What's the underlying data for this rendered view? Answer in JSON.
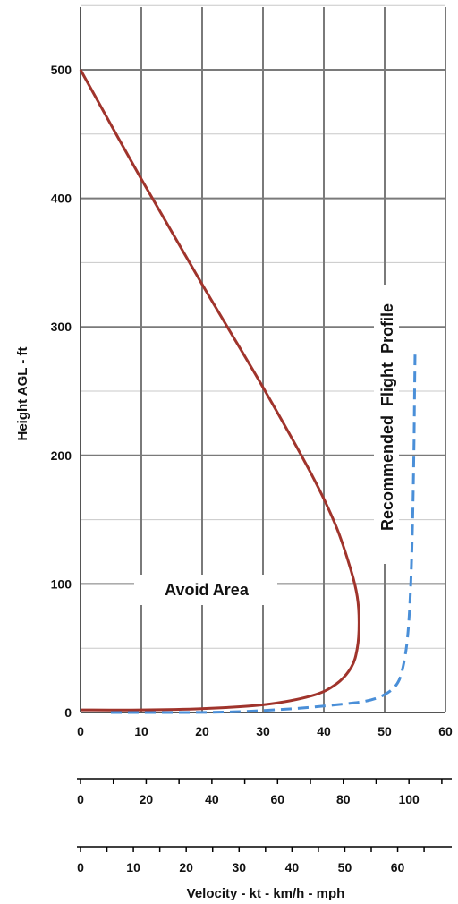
{
  "chart_data": {
    "type": "line",
    "title": "",
    "ylabel": "Height AGL - ft",
    "xlabel": "Velocity - kt - km/h - mph",
    "xlim": [
      0,
      60
    ],
    "ylim": [
      0,
      500
    ],
    "x_ticks": [
      "0",
      "10",
      "20",
      "30",
      "40",
      "50",
      "60"
    ],
    "y_ticks": [
      "0",
      "100",
      "200",
      "300",
      "400",
      "500"
    ],
    "kmh_ticks": [
      "0",
      "20",
      "40",
      "60",
      "80",
      "100"
    ],
    "mph_ticks": [
      "0",
      "10",
      "20",
      "30",
      "40",
      "50",
      "60"
    ],
    "grid": true,
    "annotations": [
      "Avoid Area",
      "Recommended  Flight  Profile"
    ],
    "colors": {
      "avoid_curve": "#a0342c",
      "flight_profile": "#4a8fd8",
      "grid_major": "#7a7a7a",
      "grid_minor": "#c8c8c8"
    },
    "series": [
      {
        "name": "",
        "style": "solid",
        "x": [
          0,
          10,
          20,
          30,
          38,
          42,
          44.5,
          45.5,
          45.8,
          45.5,
          44.5,
          42,
          38,
          30,
          20,
          10,
          0
        ],
        "y": [
          500,
          415,
          333,
          253,
          185,
          145,
          110,
          90,
          70,
          50,
          35,
          22,
          13,
          6,
          3,
          2,
          2
        ]
      },
      {
        "name": "",
        "style": "dashed",
        "x": [
          5,
          15,
          25,
          35,
          42,
          47,
          50,
          52,
          53,
          53.8,
          54.3,
          54.6,
          54.8,
          54.9,
          55
        ],
        "y": [
          0,
          0,
          0.5,
          3,
          6,
          9,
          14,
          22,
          35,
          60,
          100,
          150,
          200,
          240,
          280
        ]
      }
    ]
  }
}
